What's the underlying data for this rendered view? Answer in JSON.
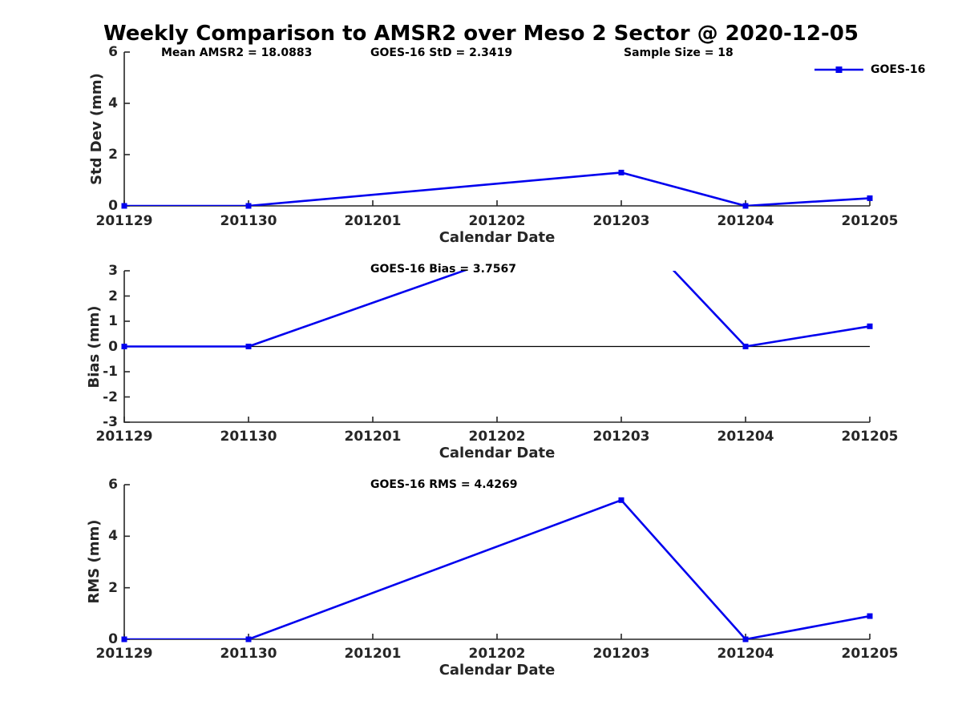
{
  "title": "Weekly Comparison to AMSR2 over Meso 2 Sector @ 2020-12-05",
  "accent_color": "#0000EE",
  "axis_color": "#262626",
  "zero_line_color": "#000000",
  "legend": {
    "label": "GOES-16",
    "position": "top-right",
    "marker": "square"
  },
  "chart_data": [
    {
      "type": "line",
      "ylabel": "Std Dev (mm)",
      "xlabel": "Calendar Date",
      "x_tick_labels": [
        "201129",
        "201130",
        "201201",
        "201202",
        "201203",
        "201204",
        "201205"
      ],
      "y_ticks": [
        0,
        2,
        4,
        6
      ],
      "ylim": [
        0,
        6
      ],
      "grid": false,
      "annotations": [
        "Mean AMSR2 = 18.0883",
        "GOES-16 StD = 2.3419",
        "Sample Size = 18"
      ],
      "series": [
        {
          "name": "GOES-16",
          "x": [
            "201129",
            "201130",
            "201203",
            "201204",
            "201205"
          ],
          "y": [
            0,
            0,
            1.3,
            0,
            0.3
          ]
        }
      ]
    },
    {
      "type": "line",
      "ylabel": "Bias (mm)",
      "xlabel": "Calendar Date",
      "x_tick_labels": [
        "201129",
        "201130",
        "201201",
        "201202",
        "201203",
        "201204",
        "201205"
      ],
      "y_ticks": [
        3,
        2,
        1,
        0,
        -1,
        -2,
        -3
      ],
      "ylim": [
        -3,
        3
      ],
      "grid": false,
      "zero_line": true,
      "annotations": [
        "GOES-16 Bias = 3.7567"
      ],
      "series": [
        {
          "name": "GOES-16",
          "x": [
            "201129",
            "201130",
            "201203",
            "201204",
            "201205"
          ],
          "y": [
            0,
            0,
            5.2,
            0,
            0.8
          ]
        }
      ]
    },
    {
      "type": "line",
      "ylabel": "RMS (mm)",
      "xlabel": "Calendar Date",
      "x_tick_labels": [
        "201129",
        "201130",
        "201201",
        "201202",
        "201203",
        "201204",
        "201205"
      ],
      "y_ticks": [
        0,
        2,
        4,
        6
      ],
      "ylim": [
        0,
        6
      ],
      "grid": false,
      "annotations": [
        "GOES-16 RMS = 4.4269"
      ],
      "series": [
        {
          "name": "GOES-16",
          "x": [
            "201129",
            "201130",
            "201203",
            "201204",
            "201205"
          ],
          "y": [
            0,
            0,
            5.4,
            0,
            0.9
          ]
        }
      ]
    }
  ]
}
